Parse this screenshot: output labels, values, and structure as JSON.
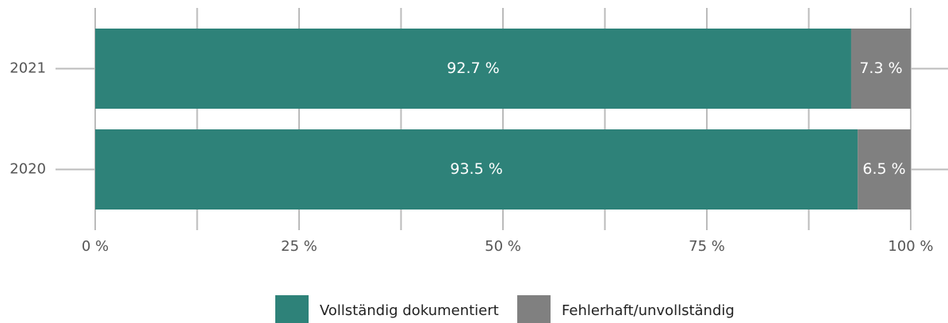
{
  "chart_data": {
    "type": "stacked_barh",
    "categories": [
      "2021",
      "2020"
    ],
    "series": [
      {
        "name": "Vollständig dokumentiert",
        "color": "#2e8279",
        "values": [
          92.7,
          93.5
        ],
        "value_labels": [
          "92.7 %",
          "93.5 %"
        ]
      },
      {
        "name": "Fehlerhaft/unvollständig",
        "color": "#808080",
        "values": [
          7.3,
          6.5
        ],
        "value_labels": [
          "7.3 %",
          "6.5 %"
        ]
      }
    ],
    "xlim": [
      0,
      100
    ],
    "xticks": [
      {
        "value": 0,
        "label": "0 %"
      },
      {
        "value": 25,
        "label": "25 %"
      },
      {
        "value": 50,
        "label": "50 %"
      },
      {
        "value": 75,
        "label": "75 %"
      },
      {
        "value": 100,
        "label": "100 %"
      }
    ],
    "xminorticks": [
      12.5,
      37.5,
      62.5,
      87.5
    ],
    "grid": true,
    "legend": "bottom"
  }
}
